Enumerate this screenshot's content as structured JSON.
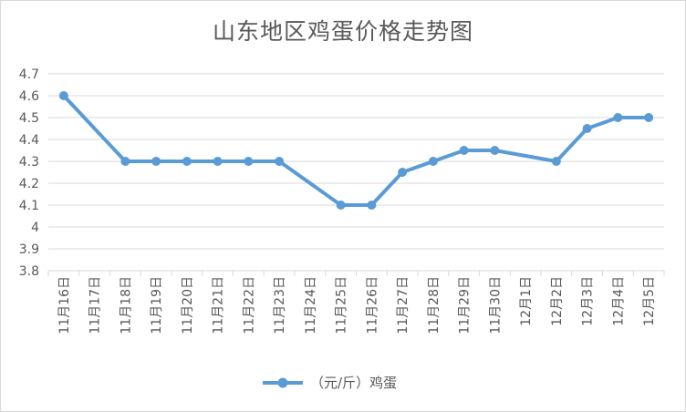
{
  "chart_data": {
    "type": "line",
    "title": "山东地区鸡蛋价格走势图",
    "categories": [
      "11月16日",
      "11月17日",
      "11月18日",
      "11月19日",
      "11月20日",
      "11月21日",
      "11月22日",
      "11月23日",
      "11月24日",
      "11月25日",
      "11月26日",
      "11月27日",
      "11月28日",
      "11月29日",
      "11月30日",
      "12月1日",
      "12月2日",
      "12月3日",
      "12月4日",
      "12月5日"
    ],
    "series": [
      {
        "name": "（元/斤）鸡蛋",
        "color": "#5b9bd5",
        "values": [
          4.6,
          null,
          4.3,
          4.3,
          4.3,
          4.3,
          4.3,
          4.3,
          null,
          4.1,
          4.1,
          4.25,
          4.3,
          4.35,
          4.35,
          null,
          4.3,
          4.45,
          4.5,
          4.5
        ]
      }
    ],
    "yticks": [
      "3.8",
      "3.9",
      "4",
      "4.1",
      "4.2",
      "4.3",
      "4.4",
      "4.5",
      "4.6",
      "4.7"
    ],
    "ylim": [
      3.8,
      4.7
    ],
    "grid": true,
    "legend": "bottom"
  }
}
